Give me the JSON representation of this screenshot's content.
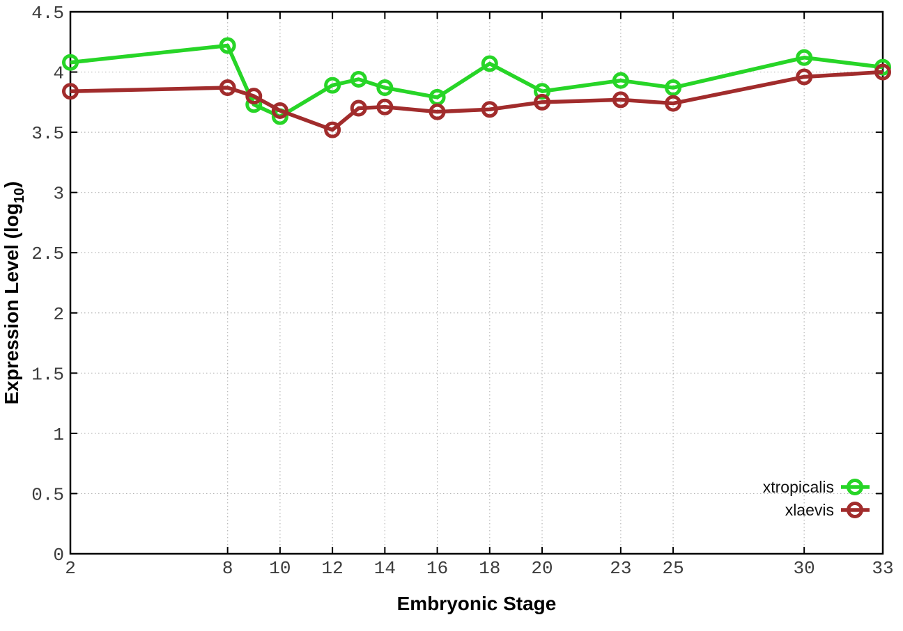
{
  "chart_data": {
    "type": "line",
    "title": "",
    "xlabel": "Embryonic Stage",
    "ylabel": {
      "pre": "Expression Level (log",
      "sub": "10",
      "post": ")"
    },
    "xlim": [
      2,
      33
    ],
    "ylim": [
      0,
      4.5
    ],
    "x_ticks": [
      2,
      8,
      10,
      12,
      14,
      16,
      18,
      20,
      23,
      25,
      30,
      33
    ],
    "y_ticks": [
      0,
      0.5,
      1,
      1.5,
      2,
      2.5,
      3,
      3.5,
      4,
      4.5
    ],
    "grid": true,
    "legend_position": "bottom-right",
    "x": [
      2,
      8,
      9,
      10,
      12,
      13,
      14,
      16,
      18,
      20,
      23,
      25,
      30,
      33
    ],
    "series": [
      {
        "name": "xtropicalis",
        "color": "#27d527",
        "marker": "open-circle",
        "values": [
          4.08,
          4.22,
          3.73,
          3.63,
          3.89,
          3.94,
          3.87,
          3.79,
          4.07,
          3.84,
          3.93,
          3.87,
          4.12,
          4.04
        ]
      },
      {
        "name": "xlaevis",
        "color": "#a12c2c",
        "marker": "open-circle",
        "values": [
          3.84,
          3.87,
          3.8,
          3.68,
          3.52,
          3.7,
          3.71,
          3.67,
          3.69,
          3.75,
          3.77,
          3.74,
          3.96,
          4.0
        ]
      }
    ],
    "colors": {
      "grid": "#b5b5b5",
      "border": "#000000",
      "tick_label": "#3c3c3c",
      "title": "#000000",
      "legend_text": "#111111"
    }
  }
}
